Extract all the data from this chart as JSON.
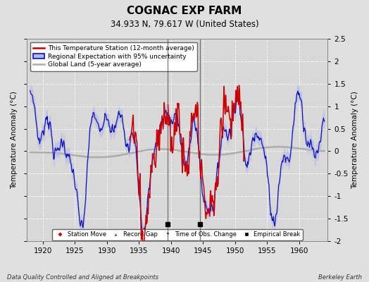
{
  "title": "COGNAC EXP FARM",
  "subtitle": "34.933 N, 79.617 W (United States)",
  "ylabel": "Temperature Anomaly (°C)",
  "xlabel_bottom_left": "Data Quality Controlled and Aligned at Breakpoints",
  "xlabel_bottom_right": "Berkeley Earth",
  "year_start": 1918,
  "year_end": 1964,
  "xlim": [
    1917.5,
    1964.5
  ],
  "ylim": [
    -2.0,
    2.5
  ],
  "yticks_right": [
    -2.0,
    -1.5,
    -1.0,
    -0.5,
    0.0,
    0.5,
    1.0,
    1.5,
    2.0,
    2.5
  ],
  "xticks": [
    1920,
    1925,
    1930,
    1935,
    1940,
    1945,
    1950,
    1955,
    1960
  ],
  "color_station": "#cc0000",
  "color_regional_line": "#1111bb",
  "color_regional_fill": "#b0b8e8",
  "color_global": "#aaaaaa",
  "bg_color": "#e0e0e0",
  "plot_bg_color": "#d8d8d8",
  "empirical_break_years": [
    1939.5,
    1944.5
  ],
  "station_start": 1933.5,
  "station_end": 1951.5,
  "seed_regional": 7,
  "seed_station": 13,
  "seed_global": 3
}
